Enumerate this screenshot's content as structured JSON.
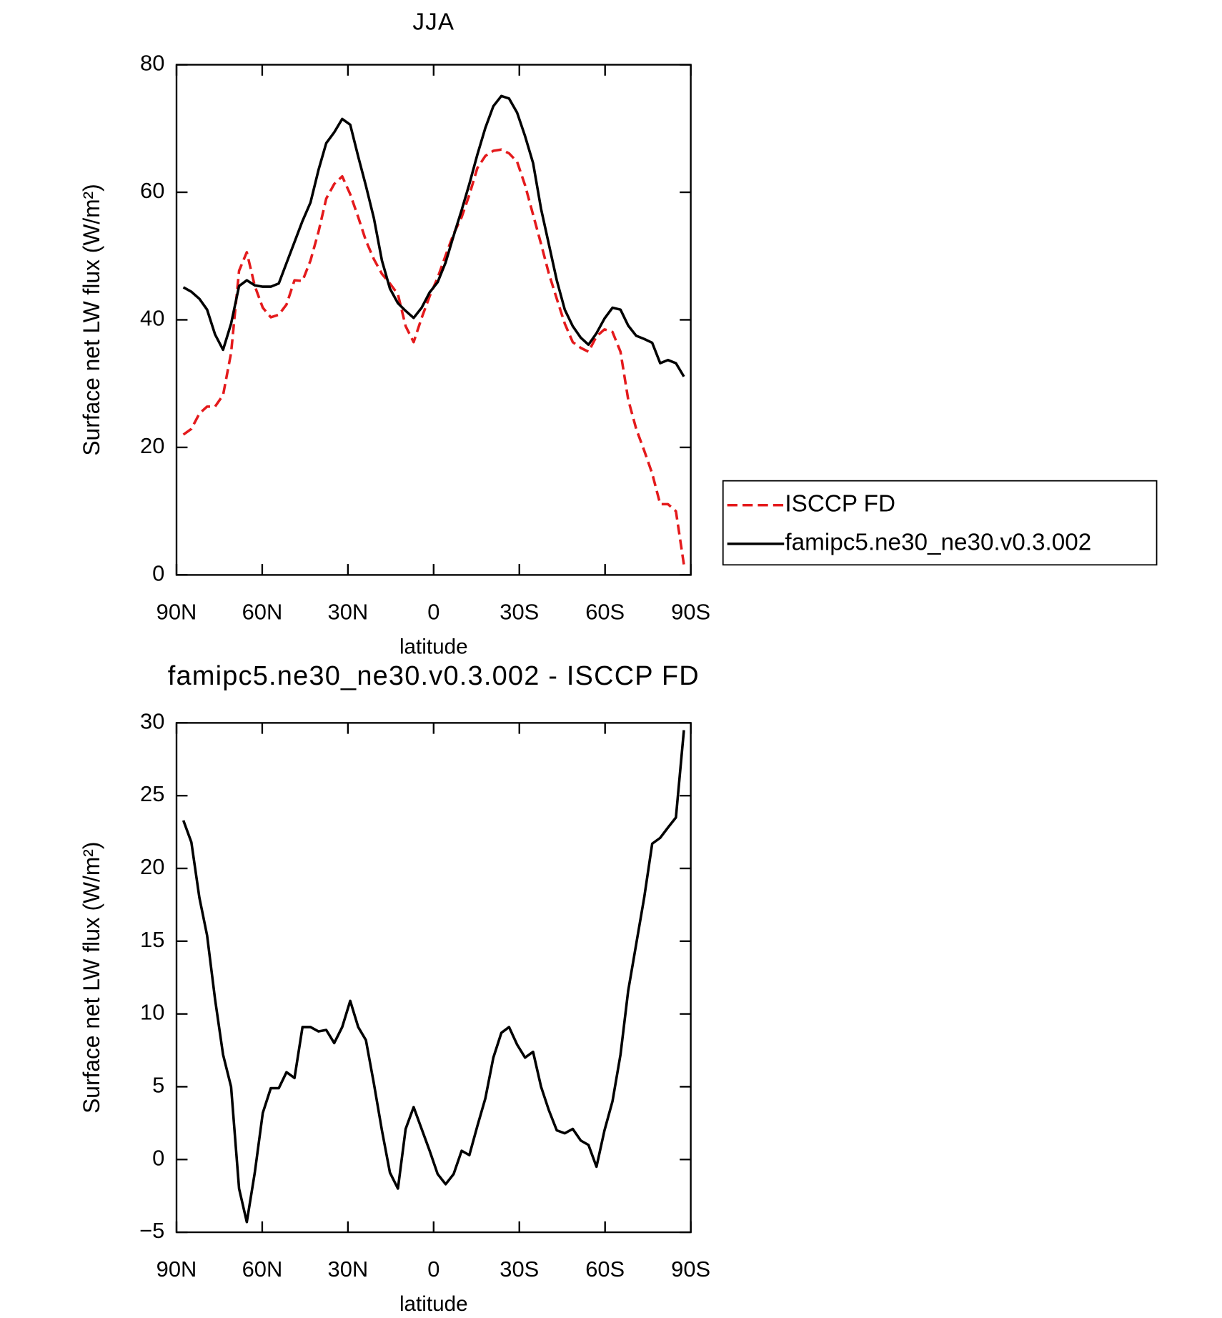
{
  "chart_data": [
    {
      "type": "line",
      "title": "JJA",
      "x_label": "latitude",
      "y_label": "Surface net LW flux (W/m²)",
      "x": [
        87.6,
        84.8,
        82.0,
        79.3,
        76.5,
        73.7,
        70.9,
        68.1,
        65.4,
        62.6,
        59.8,
        57.0,
        54.2,
        51.5,
        48.7,
        45.9,
        43.1,
        40.3,
        37.6,
        34.8,
        32.0,
        29.2,
        26.4,
        23.7,
        20.9,
        18.1,
        15.3,
        12.5,
        9.8,
        7.0,
        4.2,
        1.4,
        -1.4,
        -4.2,
        -7.0,
        -9.8,
        -12.5,
        -15.3,
        -18.1,
        -20.9,
        -23.7,
        -26.4,
        -29.2,
        -32.0,
        -34.8,
        -37.6,
        -40.3,
        -43.1,
        -45.9,
        -48.7,
        -51.5,
        -54.2,
        -57.0,
        -59.8,
        -62.6,
        -65.4,
        -68.1,
        -70.9,
        -73.7,
        -76.5,
        -79.3,
        -82.0,
        -84.8,
        -87.6
      ],
      "series": [
        {
          "name": "ISCCP FD",
          "color": "#e41a1c",
          "line_style": "dashed",
          "values": [
            22.0,
            22.9,
            25.3,
            26.4,
            26.4,
            28.2,
            34.8,
            47.7,
            50.6,
            45.3,
            41.9,
            40.4,
            40.8,
            42.4,
            46.2,
            46.1,
            49.3,
            53.8,
            59,
            61.3,
            62.5,
            59.7,
            56.1,
            52.4,
            49.5,
            47.2,
            45.7,
            44,
            39,
            36.5,
            40.3,
            43.7,
            46.6,
            50.1,
            53.5,
            56.1,
            59.6,
            63.8,
            65.7,
            66.5,
            66.7,
            66.1,
            64.8,
            61.1,
            56.5,
            51.9,
            47.3,
            43.3,
            39.4,
            36.5,
            35.6,
            35,
            37.4,
            38.5,
            38.1,
            35,
            27.5,
            22.9,
            19.5,
            15.9,
            11.1,
            11.1,
            10,
            1.6
          ]
        },
        {
          "name": "famipc5.ne30_ne30.v0.3.002",
          "color": "#000000",
          "line_style": "solid",
          "values": [
            45.1,
            44.4,
            43.3,
            41.6,
            37.7,
            35.3,
            39.4,
            45.3,
            46.2,
            45.4,
            45.2,
            45.2,
            45.7,
            48.9,
            52.2,
            55.5,
            58.4,
            63.5,
            67.7,
            69.4,
            71.5,
            70.6,
            65.6,
            61,
            55.9,
            49.3,
            44.9,
            42.6,
            41.4,
            40.3,
            41.9,
            44.3,
            45.9,
            49,
            53.2,
            57.2,
            61.3,
            65.9,
            70.1,
            73.5,
            75.1,
            74.7,
            72.5,
            68.8,
            64.6,
            57.4,
            51.9,
            46.2,
            41.6,
            39,
            37.2,
            36.1,
            37.9,
            40.2,
            41.9,
            41.6,
            39.1,
            37.5,
            37,
            36.4,
            33.2,
            33.7,
            33.2,
            31.1
          ]
        }
      ],
      "xlim": [
        90,
        -90
      ],
      "xticks": [
        {
          "value": 90,
          "label": "90N"
        },
        {
          "value": 60,
          "label": "60N"
        },
        {
          "value": 30,
          "label": "30N"
        },
        0,
        {
          "value": -30,
          "label": "30S"
        },
        {
          "value": -60,
          "label": "60S"
        },
        {
          "value": -90,
          "label": "90S"
        }
      ],
      "ylim": [
        0,
        80
      ],
      "yticks": [
        0,
        20,
        40,
        60,
        80
      ],
      "legend": "outside-right"
    },
    {
      "type": "line",
      "title": "famipc5.ne30_ne30.v0.3.002 - ISCCP FD",
      "x_label": "latitude",
      "y_label": "Surface net LW flux (W/m²)",
      "x": [
        87.6,
        84.8,
        82.0,
        79.3,
        76.5,
        73.7,
        70.9,
        68.1,
        65.4,
        62.6,
        59.8,
        57.0,
        54.2,
        51.5,
        48.7,
        45.9,
        43.1,
        40.3,
        37.6,
        34.8,
        32.0,
        29.2,
        26.4,
        23.7,
        20.9,
        18.1,
        15.3,
        12.5,
        9.8,
        7.0,
        4.2,
        1.4,
        -1.4,
        -4.2,
        -7.0,
        -9.8,
        -12.5,
        -15.3,
        -18.1,
        -20.9,
        -23.7,
        -26.4,
        -29.2,
        -32.0,
        -34.8,
        -37.6,
        -40.3,
        -43.1,
        -45.9,
        -48.7,
        -51.5,
        -54.2,
        -57.0,
        -59.8,
        -62.6,
        -65.4,
        -68.1,
        -70.9,
        -73.7,
        -76.5,
        -79.3,
        -82.0,
        -84.8,
        -87.6
      ],
      "values": [
        23.3,
        21.8,
        18,
        15.4,
        11,
        7.2,
        5,
        -2,
        -4.3,
        -0.9,
        3.2,
        4.9,
        4.9,
        6,
        5.6,
        9.1,
        9.1,
        8.8,
        8.9,
        8,
        9.1,
        10.9,
        9.1,
        8.2,
        5.2,
        2,
        -0.9,
        -2,
        2.1,
        3.6,
        2.1,
        0.6,
        -1,
        -1.7,
        -1,
        0.6,
        0.3,
        2.3,
        4.2,
        7,
        8.7,
        9.1,
        7.9,
        7,
        7.4,
        5,
        3.4,
        2,
        1.8,
        2.1,
        1.3,
        1,
        -0.5,
        2,
        4,
        7.2,
        11.6,
        14.8,
        18,
        21.7,
        22.1,
        22.8,
        23.5,
        29.5
      ],
      "color": "#000000",
      "xlim": [
        90,
        -90
      ],
      "xticks": [
        {
          "value": 90,
          "label": "90N"
        },
        {
          "value": 60,
          "label": "60N"
        },
        {
          "value": 30,
          "label": "30N"
        },
        0,
        {
          "value": -30,
          "label": "30S"
        },
        {
          "value": -60,
          "label": "60S"
        },
        {
          "value": -90,
          "label": "90S"
        }
      ],
      "ylim": [
        -5,
        30
      ],
      "yticks": [
        {
          "value": -5,
          "label": "−5"
        },
        0,
        5,
        10,
        15,
        20,
        25,
        30
      ]
    }
  ]
}
